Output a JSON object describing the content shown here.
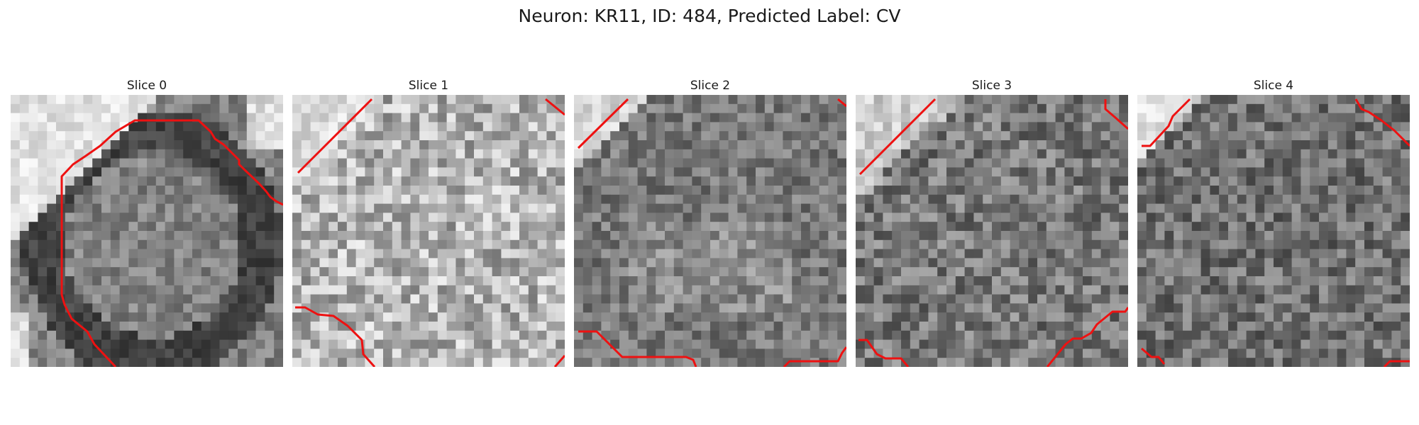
{
  "figure": {
    "title": "Neuron: KR11, ID: 484, Predicted Label: CV",
    "contour_color": "#ee1111",
    "panels": [
      {
        "title": "Slice 0",
        "bright": "upper-left corner",
        "dark": "ring"
      },
      {
        "title": "Slice 1",
        "bright": "overall",
        "dark": "none"
      },
      {
        "title": "Slice 2",
        "bright": "upper-left corner",
        "dark": "medium"
      },
      {
        "title": "Slice 3",
        "bright": "upper-left corner",
        "dark": "medium"
      },
      {
        "title": "Slice 4",
        "bright": "upper-left corner",
        "dark": "medium"
      }
    ]
  }
}
